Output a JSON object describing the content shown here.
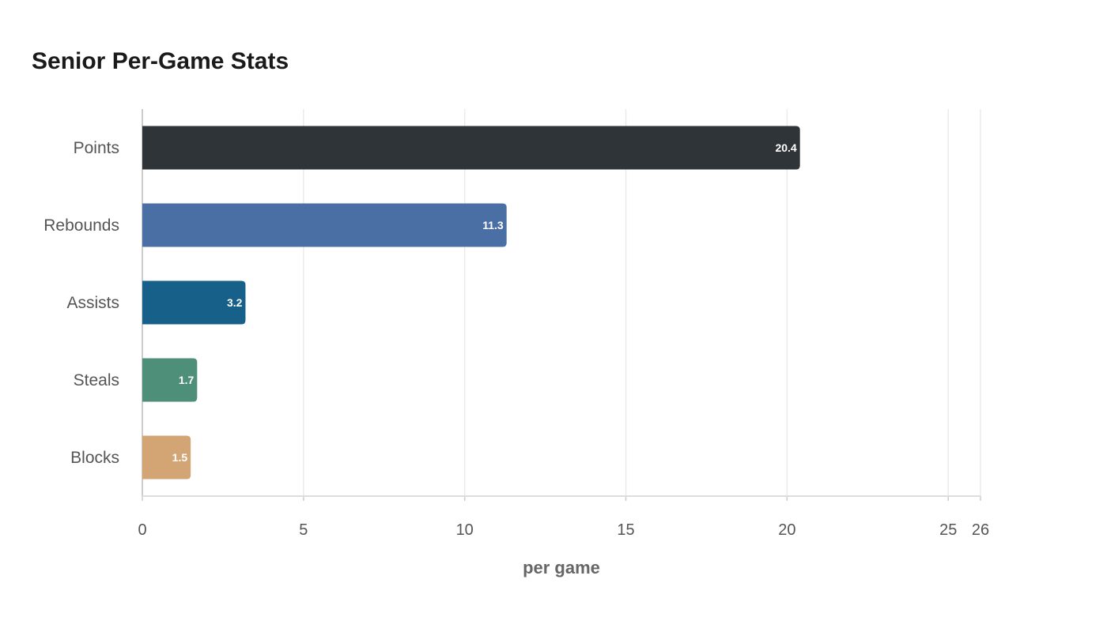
{
  "chart_data": {
    "type": "bar",
    "orientation": "horizontal",
    "title": "Senior Per-Game Stats",
    "xlabel": "per game",
    "ylabel": "",
    "categories": [
      "Points",
      "Rebounds",
      "Assists",
      "Steals",
      "Blocks"
    ],
    "values": [
      20.4,
      11.3,
      3.2,
      1.7,
      1.5
    ],
    "colors": [
      "#2e3438",
      "#4a6fa5",
      "#17608a",
      "#4e8f7a",
      "#d4a574"
    ],
    "xlim": [
      0,
      26
    ],
    "xticks": [
      0,
      5,
      10,
      15,
      20,
      25,
      26
    ],
    "grid": true,
    "legend": "none"
  }
}
